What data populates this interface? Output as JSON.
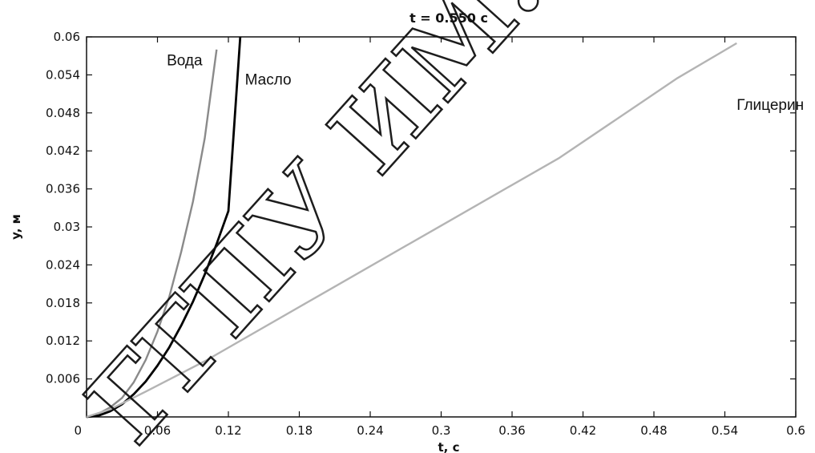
{
  "chart_data": {
    "type": "line",
    "title": "t = 0.550 с",
    "xlabel": "t, c",
    "ylabel": "y, м",
    "xlim": [
      0,
      0.6
    ],
    "ylim": [
      0,
      0.06
    ],
    "xticks": [
      "0",
      "0.06",
      "0.12",
      "0.18",
      "0.24",
      "0.3",
      "0.36",
      "0.42",
      "0.48",
      "0.54",
      "0.6"
    ],
    "yticks": [
      "0",
      "0.006",
      "0.012",
      "0.018",
      "0.024",
      "0.03",
      "0.036",
      "0.042",
      "0.048",
      "0.054",
      "0.06"
    ],
    "grid": false,
    "series": [
      {
        "name": "Вода",
        "color": "#8a8a8a",
        "x": [
          0,
          0.01,
          0.02,
          0.03,
          0.04,
          0.05,
          0.06,
          0.07,
          0.08,
          0.09,
          0.1,
          0.11
        ],
        "y": [
          0,
          0.0005,
          0.0015,
          0.003,
          0.0055,
          0.009,
          0.0135,
          0.019,
          0.026,
          0.034,
          0.044,
          0.058
        ]
      },
      {
        "name": "Масло",
        "color": "#000000",
        "x": [
          0,
          0.01,
          0.02,
          0.03,
          0.04,
          0.05,
          0.06,
          0.07,
          0.08,
          0.09,
          0.1,
          0.11,
          0.12,
          0.13
        ],
        "y": [
          0,
          0.0002,
          0.0009,
          0.002,
          0.0036,
          0.0056,
          0.0081,
          0.011,
          0.0144,
          0.0182,
          0.0225,
          0.0273,
          0.0325,
          0.0605
        ]
      },
      {
        "name": "Глицерин",
        "color": "#b4b4b4",
        "x": [
          0,
          0.02,
          0.05,
          0.1,
          0.2,
          0.3,
          0.4,
          0.5,
          0.55
        ],
        "y": [
          0,
          0.0012,
          0.004,
          0.0088,
          0.0195,
          0.0302,
          0.0409,
          0.0535,
          0.059
        ]
      }
    ]
  },
  "watermark": {
    "text": "ГГПУ ИМ. И. П. Ш",
    "color": "#111111"
  }
}
